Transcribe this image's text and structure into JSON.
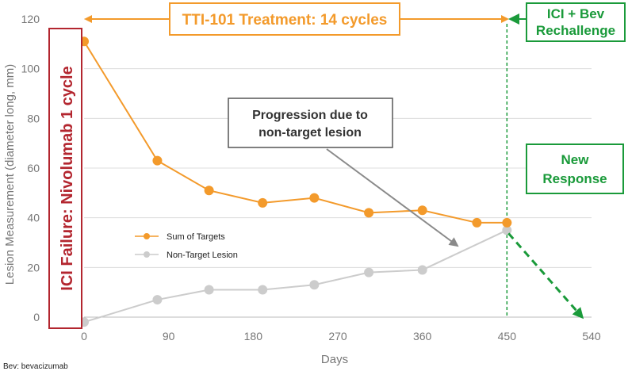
{
  "chart_data": {
    "type": "line",
    "title": "",
    "xlabel": "Days",
    "ylabel": "Lesion Measurement (diameter long, mm)",
    "xlim": [
      0,
      540
    ],
    "ylim": [
      0,
      120
    ],
    "xticks": [
      "0",
      "90",
      "180",
      "270",
      "360",
      "450",
      "540"
    ],
    "yticks": [
      "0",
      "20",
      "40",
      "60",
      "80",
      "100",
      "120"
    ],
    "grid": "horizontal",
    "legend_position": "center-left",
    "series": [
      {
        "name": "Sum of Targets",
        "color": "#f39a2b",
        "x": [
          0,
          78,
          133,
          190,
          245,
          303,
          360,
          418,
          450
        ],
        "y": [
          111,
          63,
          51,
          46,
          48,
          42,
          43,
          38,
          38
        ]
      },
      {
        "name": "Non-Target Lesion",
        "color": "#cccccc",
        "x": [
          0,
          78,
          133,
          190,
          245,
          303,
          360,
          450
        ],
        "y": [
          -2,
          7,
          11,
          11,
          13,
          18,
          19,
          35
        ]
      }
    ],
    "projection": {
      "x": [
        450,
        530
      ],
      "y": [
        35,
        0
      ],
      "color": "#1a9a3a"
    },
    "rechallenge_x": 450,
    "annotations": {
      "left_box": "ICI Failure: Nivolumab 1 cycle",
      "treatment_box": "TTI-101 Treatment: 14 cycles",
      "rechallenge_box_line1": "ICI + Bev",
      "rechallenge_box_line2": "Rechallenge",
      "progression_box_line1": "Progression due to",
      "progression_box_line2": "non-target lesion",
      "response_box_line1": "New",
      "response_box_line2": "Response"
    },
    "colors": {
      "red": "#b3262f",
      "orange": "#f39a2b",
      "green": "#1a9a3a",
      "gray_box": "#555555",
      "arrow_gray": "#8a8a8a"
    }
  },
  "footnote": "Bev: bevacizumab"
}
